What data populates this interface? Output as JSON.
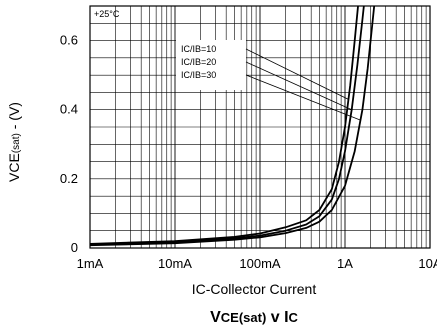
{
  "chart_data": {
    "type": "line",
    "condition": "+25°C",
    "x_scale": "log",
    "xlim": [
      0.001,
      10
    ],
    "ylim": [
      0,
      0.7
    ],
    "x_tick_labels": [
      "1mA",
      "10mA",
      "100mA",
      "1A",
      "10A"
    ],
    "y_tick_labels": [
      "0",
      "0.2",
      "0.4",
      "0.6"
    ],
    "ylabel": {
      "main": "VCE",
      "sub": "(sat)",
      "tail": " - (V)"
    },
    "xlabel": {
      "main": "IC",
      "sub": "",
      "tail": "-Collector Current"
    },
    "title": {
      "a": "V",
      "b": "CE(sat)",
      "c": " v I",
      "d": "C"
    },
    "grid": true,
    "legend_position": "top-center",
    "series": [
      {
        "name": "IC/IB=10",
        "points": [
          [
            0.001,
            0.012
          ],
          [
            0.01,
            0.02
          ],
          [
            0.05,
            0.032
          ],
          [
            0.1,
            0.042
          ],
          [
            0.2,
            0.06
          ],
          [
            0.35,
            0.08
          ],
          [
            0.5,
            0.11
          ],
          [
            0.7,
            0.17
          ],
          [
            0.85,
            0.25
          ],
          [
            1.0,
            0.35
          ],
          [
            1.15,
            0.47
          ],
          [
            1.3,
            0.6
          ],
          [
            1.45,
            0.72
          ]
        ]
      },
      {
        "name": "IC/IB=20",
        "points": [
          [
            0.001,
            0.01
          ],
          [
            0.01,
            0.017
          ],
          [
            0.05,
            0.028
          ],
          [
            0.1,
            0.036
          ],
          [
            0.2,
            0.05
          ],
          [
            0.35,
            0.068
          ],
          [
            0.5,
            0.092
          ],
          [
            0.7,
            0.14
          ],
          [
            0.85,
            0.2
          ],
          [
            1.0,
            0.28
          ],
          [
            1.2,
            0.4
          ],
          [
            1.4,
            0.53
          ],
          [
            1.6,
            0.66
          ],
          [
            1.7,
            0.72
          ]
        ]
      },
      {
        "name": "IC/IB=30",
        "points": [
          [
            0.001,
            0.008
          ],
          [
            0.01,
            0.014
          ],
          [
            0.05,
            0.024
          ],
          [
            0.1,
            0.031
          ],
          [
            0.2,
            0.043
          ],
          [
            0.35,
            0.058
          ],
          [
            0.5,
            0.076
          ],
          [
            0.7,
            0.11
          ],
          [
            1.0,
            0.18
          ],
          [
            1.3,
            0.28
          ],
          [
            1.6,
            0.4
          ],
          [
            1.85,
            0.52
          ],
          [
            2.1,
            0.65
          ],
          [
            2.25,
            0.72
          ]
        ]
      }
    ]
  }
}
